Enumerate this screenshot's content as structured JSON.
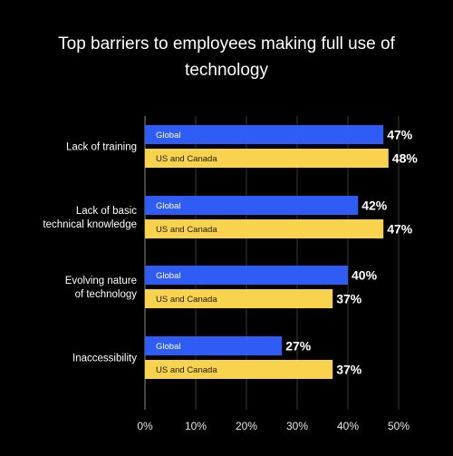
{
  "chart_data": {
    "type": "bar",
    "orientation": "horizontal",
    "title": "Top barriers to employees making full use of technology",
    "categories": [
      "Lack of training",
      "Lack of basic technical knowledge",
      "Evolving nature of technology",
      "Inaccessibility"
    ],
    "series": [
      {
        "name": "Global",
        "values": [
          47,
          42,
          40,
          27
        ],
        "color": "#2f5cf5"
      },
      {
        "name": "US and Canada",
        "values": [
          48,
          47,
          37,
          37
        ],
        "color": "#f9d34e"
      }
    ],
    "value_suffix": "%",
    "xlim": [
      0,
      50
    ],
    "xticks": [
      "0%",
      "10%",
      "20%",
      "30%",
      "40%",
      "50%"
    ],
    "grid": true,
    "legend": "inline labels inside bars"
  }
}
